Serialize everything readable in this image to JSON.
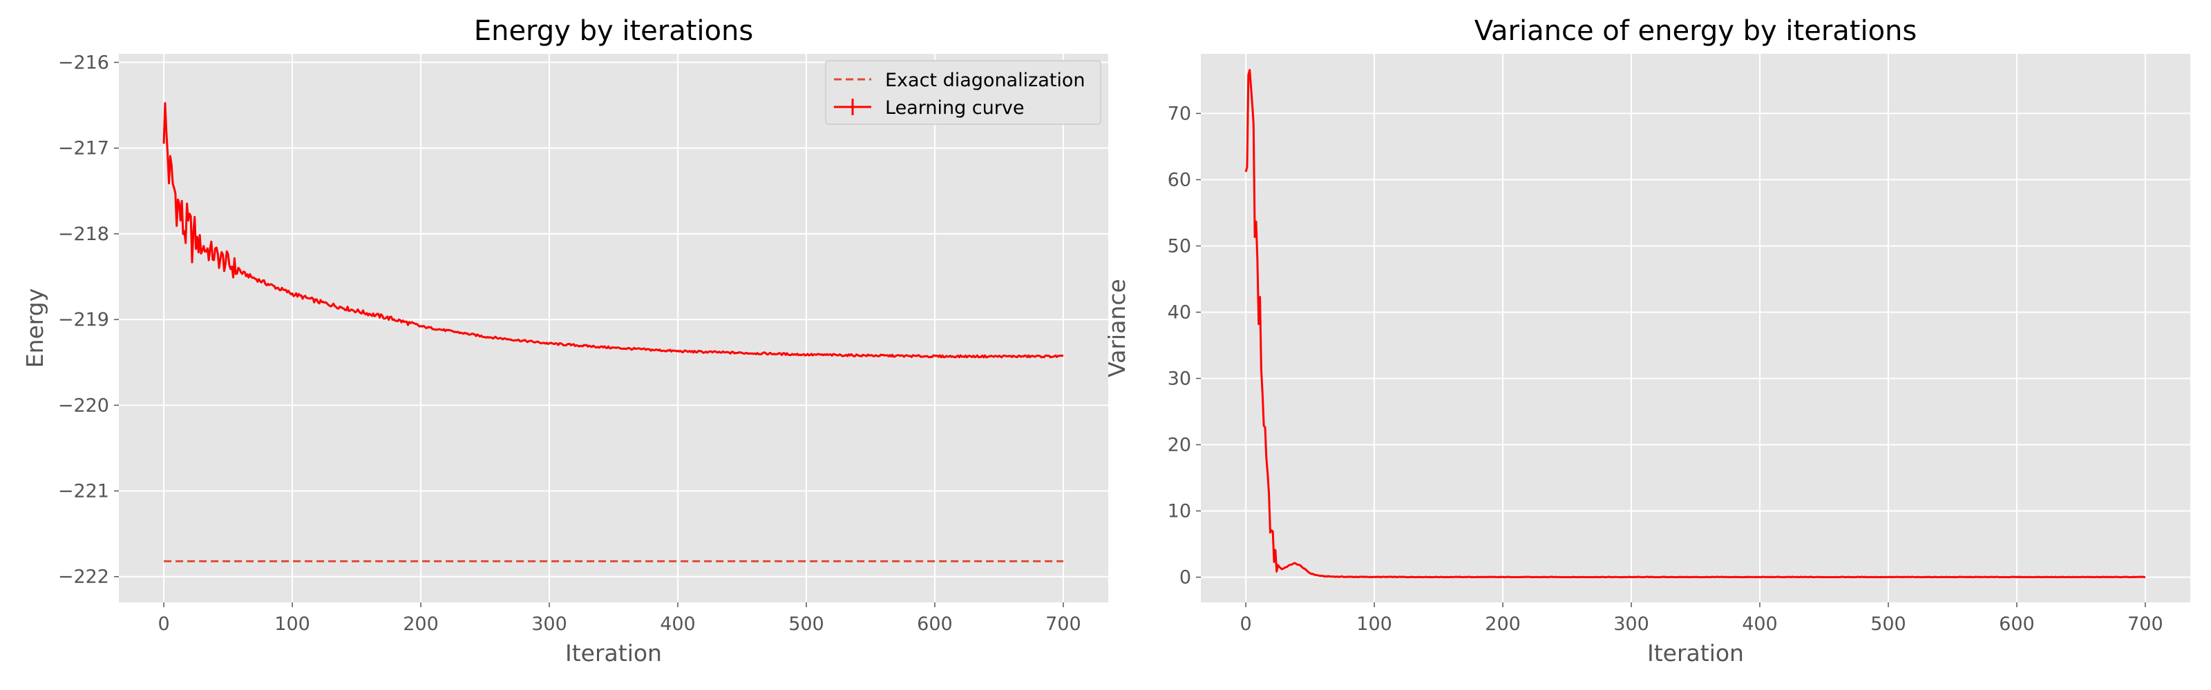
{
  "chart_data": [
    {
      "type": "line",
      "title": "Energy by iterations",
      "xlabel": "Iteration",
      "ylabel": "Energy",
      "xlim": [
        -35,
        735
      ],
      "ylim": [
        -222.3,
        -215.9
      ],
      "xticks": [
        0,
        100,
        200,
        300,
        400,
        500,
        600,
        700
      ],
      "yticks": [
        -222,
        -221,
        -220,
        -219,
        -218,
        -217,
        -216
      ],
      "xtick_labels": [
        "0",
        "100",
        "200",
        "300",
        "400",
        "500",
        "600",
        "700"
      ],
      "ytick_labels": [
        "−222",
        "−221",
        "−220",
        "−219",
        "−218",
        "−217",
        "−216"
      ],
      "grid": true,
      "legend_position": "top-right",
      "series": [
        {
          "name": "Exact diagonalization",
          "style": "dashed",
          "color": "#e24a33",
          "x": [
            0,
            700
          ],
          "y": [
            -221.82,
            -221.82
          ]
        },
        {
          "name": "Learning curve",
          "style": "solid",
          "color": "#ff0000",
          "x": [
            0,
            5,
            10,
            15,
            20,
            25,
            30,
            40,
            50,
            60,
            80,
            100,
            120,
            150,
            180,
            200,
            250,
            300,
            350,
            400,
            450,
            500,
            550,
            600,
            650,
            700
          ],
          "y": [
            -216.6,
            -217.3,
            -217.6,
            -217.9,
            -218.0,
            -218.1,
            -218.15,
            -218.25,
            -218.35,
            -218.45,
            -218.58,
            -218.7,
            -218.79,
            -218.9,
            -219.0,
            -219.08,
            -219.2,
            -219.28,
            -219.33,
            -219.37,
            -219.39,
            -219.41,
            -219.42,
            -219.43,
            -219.43,
            -219.43
          ]
        }
      ]
    },
    {
      "type": "line",
      "title": "Variance of energy by iterations",
      "xlabel": "Iteration",
      "ylabel": "Variance",
      "xlim": [
        -35,
        735
      ],
      "ylim": [
        -3.8,
        79
      ],
      "xticks": [
        0,
        100,
        200,
        300,
        400,
        500,
        600,
        700
      ],
      "yticks": [
        0,
        10,
        20,
        30,
        40,
        50,
        60,
        70
      ],
      "xtick_labels": [
        "0",
        "100",
        "200",
        "300",
        "400",
        "500",
        "600",
        "700"
      ],
      "ytick_labels": [
        "0",
        "10",
        "20",
        "30",
        "40",
        "50",
        "60",
        "70"
      ],
      "grid": true,
      "series": [
        {
          "style": "solid",
          "color": "#ff0000",
          "x": [
            0,
            2,
            4,
            6,
            8,
            10,
            12,
            14,
            16,
            18,
            20,
            22,
            25,
            28,
            31,
            35,
            38,
            42,
            46,
            50,
            55,
            60,
            70,
            80,
            100,
            150,
            200,
            300,
            400,
            500,
            600,
            700
          ],
          "y": [
            62,
            70,
            74,
            68,
            52,
            40,
            32,
            24,
            17,
            11,
            6.5,
            3.5,
            1.8,
            1.2,
            1.5,
            1.9,
            2.1,
            1.8,
            1.2,
            0.6,
            0.3,
            0.15,
            0.08,
            0.05,
            0.03,
            0.02,
            0.01,
            0.01,
            0.01,
            0.01,
            0.01,
            0.01
          ]
        }
      ]
    }
  ]
}
